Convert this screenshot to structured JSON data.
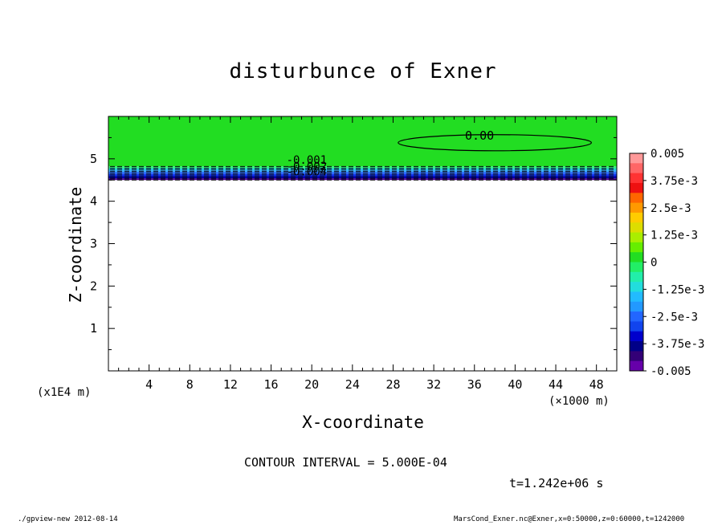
{
  "chart_data": {
    "type": "heatmap",
    "title": "disturbunce of Exner",
    "xlabel": "X-coordinate",
    "ylabel": "Z-coordinate",
    "x_unit_label": "(×1000 m)",
    "y_unit_label": "(x1E4 m)",
    "xlim": [
      0,
      50
    ],
    "ylim": [
      0,
      6
    ],
    "x_ticks": [
      4,
      8,
      12,
      16,
      20,
      24,
      28,
      32,
      36,
      40,
      44,
      48
    ],
    "y_ticks": [
      1,
      2,
      3,
      4,
      5
    ],
    "fill_top": 6,
    "fill_bottom": 4.5,
    "bands": [
      {
        "z_top": 6.0,
        "z_bottom": 4.82,
        "color": "#22dd22"
      },
      {
        "z_top": 4.82,
        "z_bottom": 4.77,
        "color": "#33ee88"
      },
      {
        "z_top": 4.77,
        "z_bottom": 4.73,
        "color": "#22ccdd"
      },
      {
        "z_top": 4.73,
        "z_bottom": 4.69,
        "color": "#33aaff"
      },
      {
        "z_top": 4.69,
        "z_bottom": 4.64,
        "color": "#2266ff"
      },
      {
        "z_top": 4.64,
        "z_bottom": 4.59,
        "color": "#1133ee"
      },
      {
        "z_top": 4.59,
        "z_bottom": 4.54,
        "color": "#0000aa"
      },
      {
        "z_top": 4.54,
        "z_bottom": 4.5,
        "color": "#440088"
      }
    ],
    "contour_labels": [
      {
        "text": "0.00",
        "x": 36.5,
        "z": 5.55
      },
      {
        "text": "-0.001",
        "x": 19.5,
        "z": 4.98
      },
      {
        "text": "-0.002",
        "x": 19.5,
        "z": 4.83
      },
      {
        "text": "-0.004",
        "x": 19.5,
        "z": 4.7
      }
    ],
    "zero_contour": {
      "x_min": 28.5,
      "x_max": 47.5,
      "z_center": 5.38,
      "z_half_height": 0.19
    },
    "colorbar": {
      "range": [
        -0.005,
        0.005
      ],
      "labels": [
        "0.005",
        "3.75e-3",
        "2.5e-3",
        "1.25e-3",
        "0",
        "-1.25e-3",
        "-2.5e-3",
        "-3.75e-3",
        "-0.005"
      ],
      "colors": [
        "#ff9999",
        "#ff6666",
        "#ff3333",
        "#ee1111",
        "#ff6600",
        "#ff9900",
        "#ffcc00",
        "#dddd00",
        "#aaee00",
        "#66ee00",
        "#22dd22",
        "#22ee66",
        "#22eeaa",
        "#22dddd",
        "#22bbff",
        "#2299ff",
        "#2266ff",
        "#1144ee",
        "#0000cc",
        "#000088",
        "#330077",
        "#6600aa"
      ]
    }
  },
  "contour_interval_text": "CONTOUR INTERVAL = 5.000E-04",
  "time_text": "t=1.242e+06 s",
  "footer_left": "./gpview-new  2012-08-14",
  "footer_right": "MarsCond_Exner.nc@Exner,x=0:50000,z=0:60000,t=1242000"
}
